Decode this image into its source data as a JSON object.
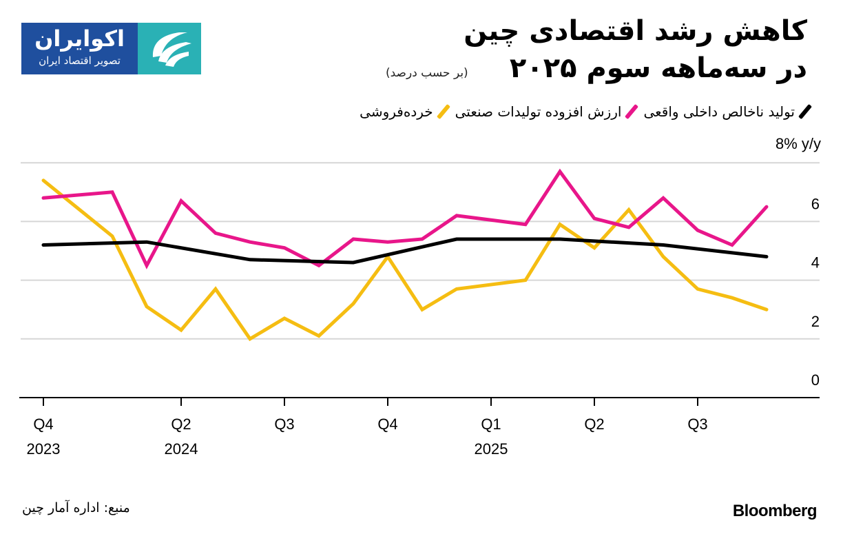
{
  "logo": {
    "name": "اکوایران",
    "tagline": "تصویر اقتصاد ایران",
    "colors": {
      "blue": "#1f4f9e",
      "teal": "#2ab1b5"
    }
  },
  "header": {
    "title_line1": "کاهش رشد اقتصادی چین",
    "title_line2": "در سه‌ماهه سوم ۲۰۲۵",
    "subtitle": "(بر حسب درصد)"
  },
  "footer": {
    "source": "منبع: اداره آمار چین",
    "brand": "Bloomberg"
  },
  "chart_data": {
    "type": "line",
    "unit_label": "8% y/y",
    "ylim": [
      0,
      8
    ],
    "y_ticks": [
      "0",
      "2",
      "4",
      "6",
      "8% y/y"
    ],
    "grid": true,
    "legend_placement": "top",
    "x_ticks": [
      {
        "label": "Q4",
        "year": "2023",
        "at": "2023-12"
      },
      {
        "label": "Q2",
        "year": "2024",
        "at": "2024-04"
      },
      {
        "label": "Q3",
        "year": "",
        "at": "2024-07"
      },
      {
        "label": "Q4",
        "year": "",
        "at": "2024-10"
      },
      {
        "label": "Q1",
        "year": "2025",
        "at": "2025-01"
      },
      {
        "label": "Q2",
        "year": "",
        "at": "2025-04"
      },
      {
        "label": "Q3",
        "year": "",
        "at": "2025-07"
      }
    ],
    "series": [
      {
        "name": "تولید ناخالص داخلی واقعی",
        "color": "#000000",
        "x": [
          "2023-12",
          "2024-03",
          "2024-06",
          "2024-09",
          "2024-12",
          "2025-03",
          "2025-06",
          "2025-09"
        ],
        "values": [
          5.2,
          5.3,
          4.7,
          4.6,
          5.4,
          5.4,
          5.2,
          4.8
        ]
      },
      {
        "name": "ارزش افزوده تولیدات صنعتی",
        "color": "#e8168a",
        "x": [
          "2023-12",
          "2024-02",
          "2024-03",
          "2024-04",
          "2024-05",
          "2024-06",
          "2024-07",
          "2024-08",
          "2024-09",
          "2024-10",
          "2024-11",
          "2024-12",
          "2025-02",
          "2025-03",
          "2025-04",
          "2025-05",
          "2025-06",
          "2025-07",
          "2025-08",
          "2025-09"
        ],
        "values": [
          6.8,
          7.0,
          4.5,
          6.7,
          5.6,
          5.3,
          5.1,
          4.5,
          5.4,
          5.3,
          5.4,
          6.2,
          5.9,
          7.7,
          6.1,
          5.8,
          6.8,
          5.7,
          5.2,
          6.5
        ]
      },
      {
        "name": "خرده‌فروشی",
        "color": "#f5bd12",
        "x": [
          "2023-12",
          "2024-02",
          "2024-03",
          "2024-04",
          "2024-05",
          "2024-06",
          "2024-07",
          "2024-08",
          "2024-09",
          "2024-10",
          "2024-11",
          "2024-12",
          "2025-02",
          "2025-03",
          "2025-04",
          "2025-05",
          "2025-06",
          "2025-07",
          "2025-08",
          "2025-09"
        ],
        "values": [
          7.4,
          5.5,
          3.1,
          2.3,
          3.7,
          2.0,
          2.7,
          2.1,
          3.2,
          4.8,
          3.0,
          3.7,
          4.0,
          5.9,
          5.1,
          6.4,
          4.8,
          3.7,
          3.4,
          3.0
        ]
      }
    ]
  }
}
